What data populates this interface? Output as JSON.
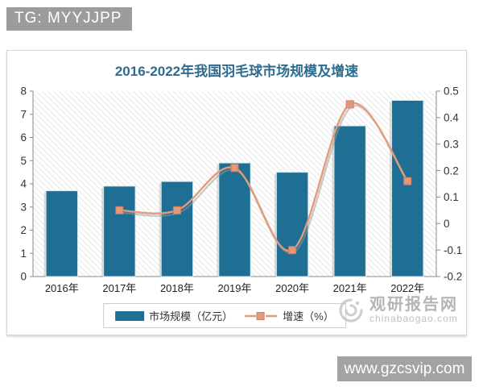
{
  "overlays": {
    "tg_badge": "TG: MYYJJPP",
    "site_badge": "www.gzcsvip.com"
  },
  "watermark": {
    "name": "观研报告网",
    "domain": "chinabaogao.com",
    "logo": "swirl-logo"
  },
  "chart_data": {
    "type": "bar",
    "subtype": "bar+line combo",
    "title": "2016-2022年我国羽毛球市场规模及增速",
    "categories": [
      "2016年",
      "2017年",
      "2018年",
      "2019年",
      "2020年",
      "2021年",
      "2022年"
    ],
    "series": [
      {
        "name": "市场规模（亿元）",
        "type": "bar",
        "axis": "left",
        "values": [
          3.7,
          3.9,
          4.1,
          4.9,
          4.5,
          6.5,
          7.6
        ],
        "color": "#1f6e93",
        "edge_color": "#cfe6f0"
      },
      {
        "name": "增速（%）",
        "type": "line",
        "axis": "right",
        "values": [
          null,
          0.05,
          0.05,
          0.21,
          -0.1,
          0.45,
          0.16
        ],
        "color": "#e49a7c",
        "marker_fill": "#e2987a",
        "marker_border": "#cf7f5e"
      }
    ],
    "left_axis": {
      "min": 0,
      "max": 8,
      "step": 1
    },
    "right_axis": {
      "min": -0.2,
      "max": 0.5,
      "step": 0.1
    },
    "grid": false,
    "plot_background": "diagonal-hatch",
    "legend_position": "bottom",
    "colors": {
      "title": "#2e6b8f",
      "axis_line": "#8a8a8a",
      "tick_text": "#333333",
      "hatch": "#e9e9e9",
      "line_shadow": "#9a9a9a"
    }
  }
}
